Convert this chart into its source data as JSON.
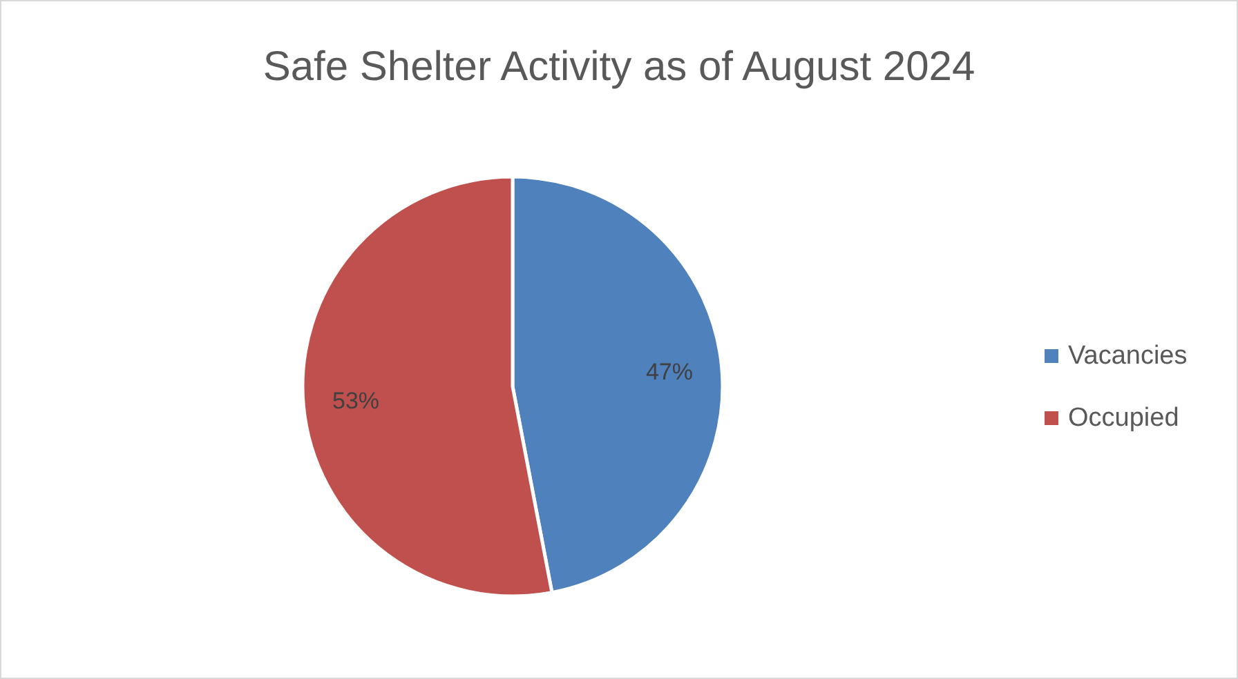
{
  "chart_data": {
    "type": "pie",
    "title": "Safe Shelter Activity as of August 2024",
    "categories": [
      "Vacancies",
      "Occupied"
    ],
    "values": [
      47,
      53
    ],
    "colors": [
      "#4f81bd",
      "#c0504d"
    ],
    "value_labels": [
      "47%",
      "53%"
    ],
    "legend": "right"
  }
}
